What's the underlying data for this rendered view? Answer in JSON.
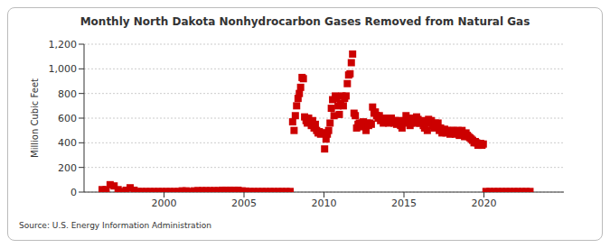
{
  "chart_data": {
    "type": "scatter",
    "title": "Monthly North Dakota Nonhydrocarbon Gases Removed from Natural Gas",
    "y_label": "Million Cubic Feet",
    "source": "Source: U.S. Energy Information Administration",
    "color": "#cc0000",
    "marker": "square",
    "grid": true,
    "xlim": [
      1995,
      2025
    ],
    "xticks": [
      2000,
      2005,
      2010,
      2015,
      2020
    ],
    "ylim": [
      0,
      1200
    ],
    "yticks": [
      0,
      200,
      400,
      600,
      800,
      {
        "value": 1000,
        "label": "1,000"
      },
      {
        "value": 1200,
        "label": "1,200"
      }
    ],
    "x": [
      1996.13,
      1996.38,
      1996.63,
      1996.88,
      1997.13,
      1997.38,
      1997.63,
      1997.88,
      1998.13,
      1998.38,
      1998.63,
      1998.88,
      1999.13,
      1999.38,
      1999.63,
      1999.88,
      2000.13,
      2000.38,
      2000.63,
      2000.88,
      2001.13,
      2001.38,
      2001.63,
      2001.88,
      2002.13,
      2002.38,
      2002.63,
      2002.88,
      2003.13,
      2003.38,
      2003.63,
      2003.88,
      2004.13,
      2004.38,
      2004.63,
      2004.88,
      2005.13,
      2005.38,
      2005.63,
      2005.88,
      2006.13,
      2006.38,
      2006.63,
      2006.88,
      2007.13,
      2007.38,
      2007.63,
      2007.88,
      2008.04,
      2008.13,
      2008.21,
      2008.29,
      2008.38,
      2008.46,
      2008.54,
      2008.63,
      2008.71,
      2008.79,
      2008.88,
      2008.96,
      2009.04,
      2009.13,
      2009.21,
      2009.29,
      2009.38,
      2009.46,
      2009.54,
      2009.63,
      2009.71,
      2009.79,
      2009.88,
      2009.96,
      2010.04,
      2010.13,
      2010.21,
      2010.29,
      2010.38,
      2010.46,
      2010.54,
      2010.63,
      2010.71,
      2010.79,
      2010.88,
      2010.96,
      2011.04,
      2011.13,
      2011.21,
      2011.29,
      2011.38,
      2011.46,
      2011.54,
      2011.63,
      2011.71,
      2011.79,
      2011.88,
      2011.96,
      2012.04,
      2012.13,
      2012.21,
      2012.29,
      2012.38,
      2012.46,
      2012.54,
      2012.63,
      2012.71,
      2012.79,
      2012.88,
      2012.96,
      2013.04,
      2013.13,
      2013.21,
      2013.29,
      2013.38,
      2013.46,
      2013.54,
      2013.63,
      2013.71,
      2013.79,
      2013.88,
      2013.96,
      2014.04,
      2014.13,
      2014.21,
      2014.29,
      2014.38,
      2014.46,
      2014.54,
      2014.63,
      2014.71,
      2014.79,
      2014.88,
      2014.96,
      2015.04,
      2015.13,
      2015.21,
      2015.29,
      2015.38,
      2015.46,
      2015.54,
      2015.63,
      2015.71,
      2015.79,
      2015.88,
      2015.96,
      2016.04,
      2016.13,
      2016.21,
      2016.29,
      2016.38,
      2016.46,
      2016.54,
      2016.63,
      2016.71,
      2016.79,
      2016.88,
      2016.96,
      2017.04,
      2017.13,
      2017.21,
      2017.29,
      2017.38,
      2017.46,
      2017.54,
      2017.63,
      2017.71,
      2017.79,
      2017.88,
      2017.96,
      2018.04,
      2018.13,
      2018.21,
      2018.29,
      2018.38,
      2018.46,
      2018.54,
      2018.63,
      2018.71,
      2018.79,
      2018.88,
      2018.96,
      2019.04,
      2019.13,
      2019.21,
      2019.29,
      2019.38,
      2019.46,
      2019.54,
      2019.63,
      2019.71,
      2019.79,
      2019.88,
      2019.96,
      2020.13,
      2020.38,
      2020.63,
      2020.88,
      2021.13,
      2021.38,
      2021.63,
      2021.88,
      2022.13,
      2022.38,
      2022.63,
      2022.88
    ],
    "values": [
      20,
      20,
      60,
      50,
      20,
      5,
      15,
      35,
      15,
      5,
      5,
      5,
      5,
      5,
      5,
      5,
      5,
      5,
      5,
      5,
      10,
      10,
      5,
      10,
      12,
      12,
      12,
      12,
      12,
      12,
      15,
      15,
      15,
      15,
      15,
      10,
      8,
      5,
      5,
      5,
      5,
      5,
      5,
      5,
      5,
      5,
      5,
      5,
      570,
      500,
      620,
      700,
      760,
      800,
      850,
      930,
      920,
      610,
      580,
      560,
      600,
      570,
      540,
      580,
      520,
      550,
      500,
      480,
      490,
      470,
      480,
      480,
      350,
      430,
      470,
      500,
      560,
      680,
      750,
      620,
      780,
      760,
      700,
      630,
      720,
      780,
      700,
      760,
      780,
      880,
      950,
      960,
      1050,
      1120,
      640,
      620,
      520,
      550,
      560,
      530,
      560,
      570,
      550,
      500,
      560,
      540,
      560,
      550,
      690,
      640,
      650,
      620,
      600,
      620,
      580,
      600,
      560,
      570,
      600,
      580,
      560,
      590,
      600,
      570,
      560,
      580,
      550,
      580,
      570,
      540,
      520,
      560,
      580,
      620,
      600,
      580,
      540,
      560,
      600,
      580,
      560,
      610,
      590,
      560,
      560,
      580,
      540,
      520,
      560,
      500,
      590,
      560,
      580,
      540,
      520,
      560,
      540,
      560,
      500,
      520,
      480,
      500,
      510,
      480,
      500,
      490,
      470,
      500,
      490,
      500,
      470,
      480,
      500,
      460,
      490,
      500,
      470,
      450,
      480,
      460,
      450,
      440,
      430,
      420,
      400,
      410,
      400,
      380,
      390,
      395,
      380,
      390,
      5,
      5,
      5,
      5,
      5,
      5,
      5,
      5,
      5,
      5,
      5,
      5
    ]
  }
}
